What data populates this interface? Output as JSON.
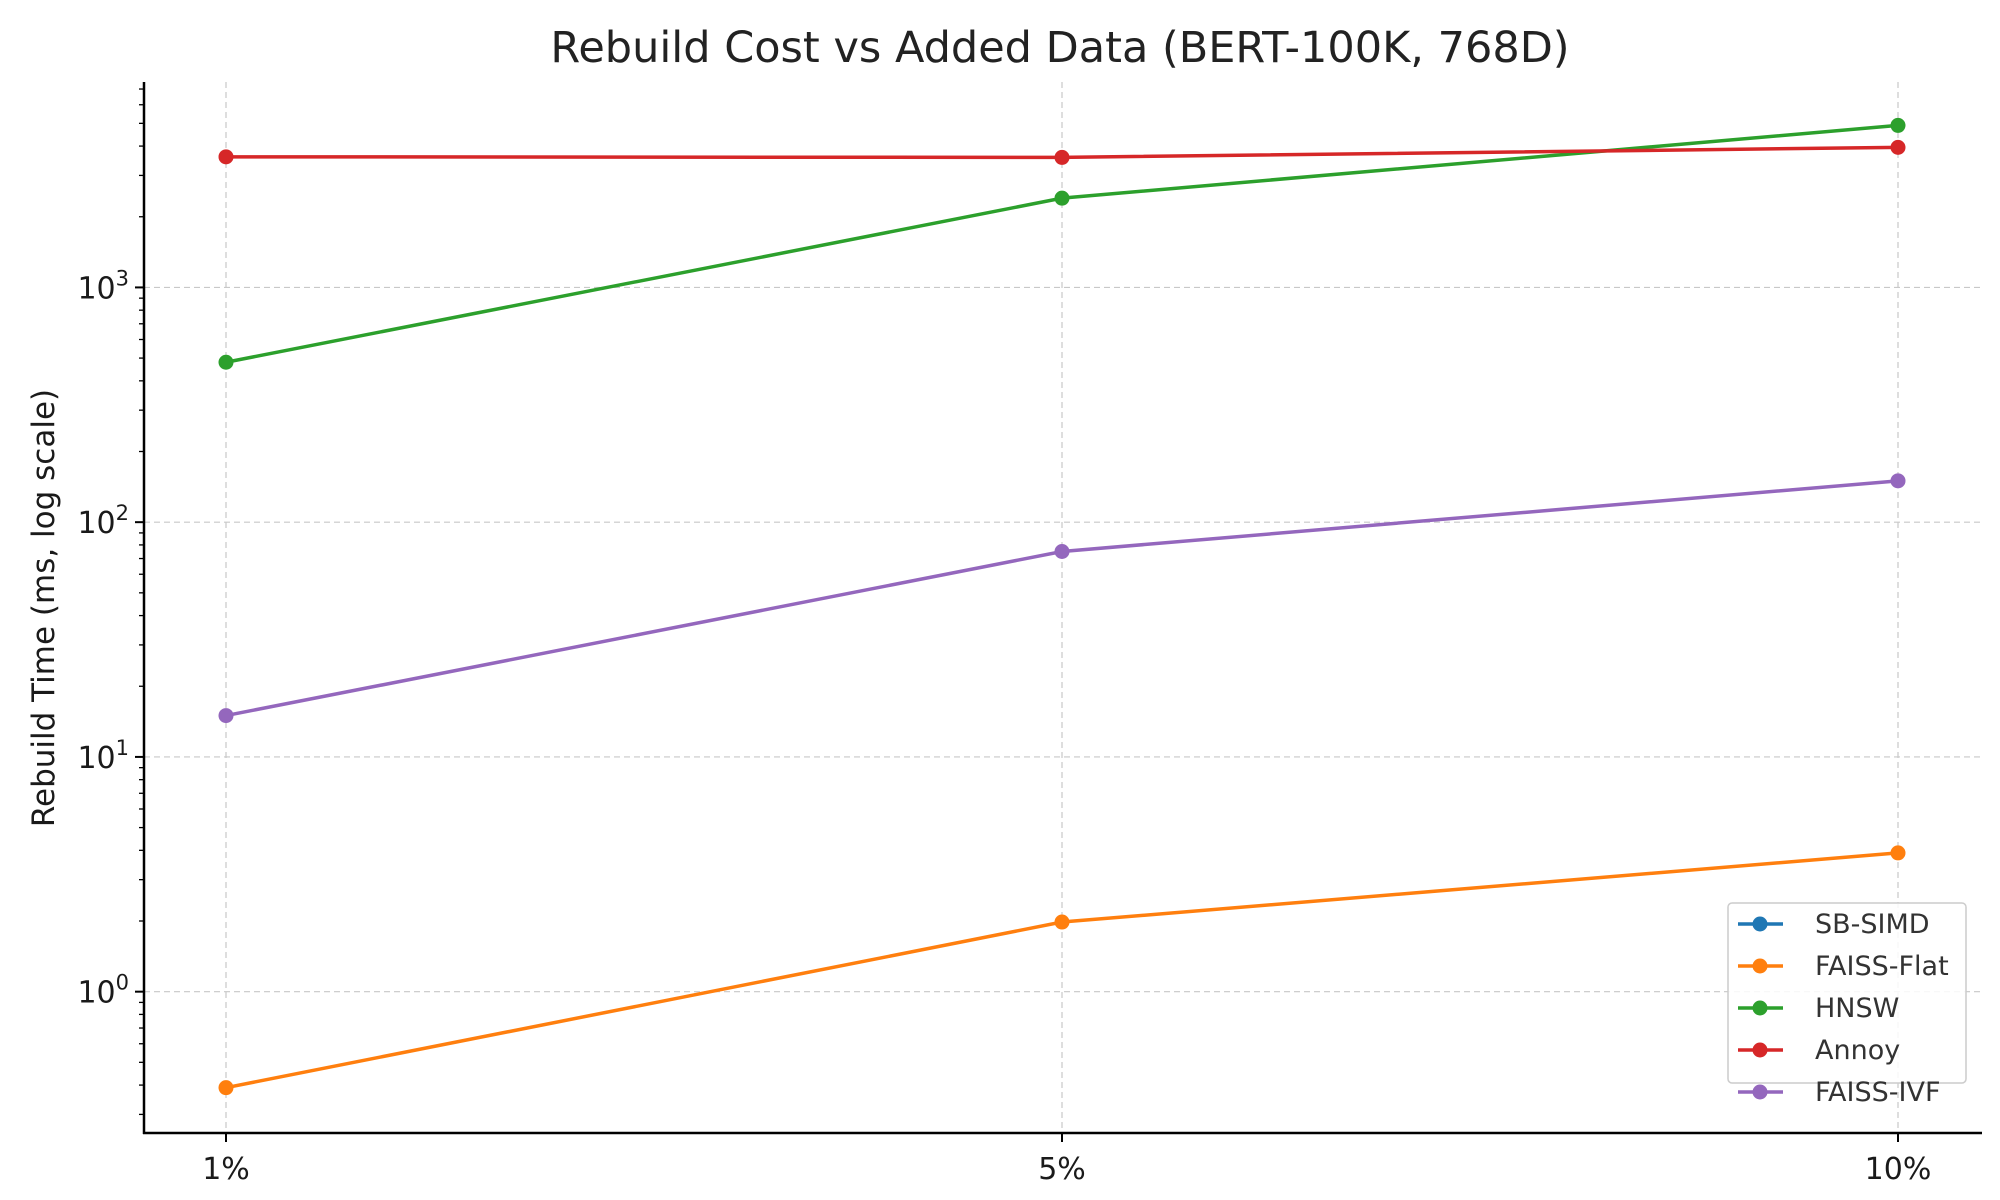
{
  "chart_data": {
    "type": "line",
    "title": "Rebuild Cost vs Added Data (BERT-100K, 768D)",
    "xlabel": "",
    "ylabel": "Rebuild Time (ms, log scale)",
    "categories": [
      "1%",
      "5%",
      "10%"
    ],
    "yscale": "log",
    "ylim": [
      0.25,
      7500
    ],
    "yticks": [
      {
        "value": 1,
        "base": "10",
        "exp": "0"
      },
      {
        "value": 10,
        "base": "10",
        "exp": "1"
      },
      {
        "value": 100,
        "base": "10",
        "exp": "2"
      },
      {
        "value": 1000,
        "base": "10",
        "exp": "3"
      }
    ],
    "grid": true,
    "legend_position": "lower-right",
    "series": [
      {
        "name": "SB-SIMD",
        "color": "#1f77b4",
        "values": [
          null,
          null,
          null
        ]
      },
      {
        "name": "FAISS-Flat",
        "color": "#ff7f0e",
        "values": [
          0.39,
          1.98,
          3.9
        ]
      },
      {
        "name": "HNSW",
        "color": "#2ca02c",
        "values": [
          480,
          2400,
          4900
        ]
      },
      {
        "name": "Annoy",
        "color": "#d62728",
        "values": [
          3600,
          3580,
          3950
        ]
      },
      {
        "name": "FAISS-IVF",
        "color": "#9467bd",
        "values": [
          15,
          75,
          150
        ]
      }
    ]
  }
}
